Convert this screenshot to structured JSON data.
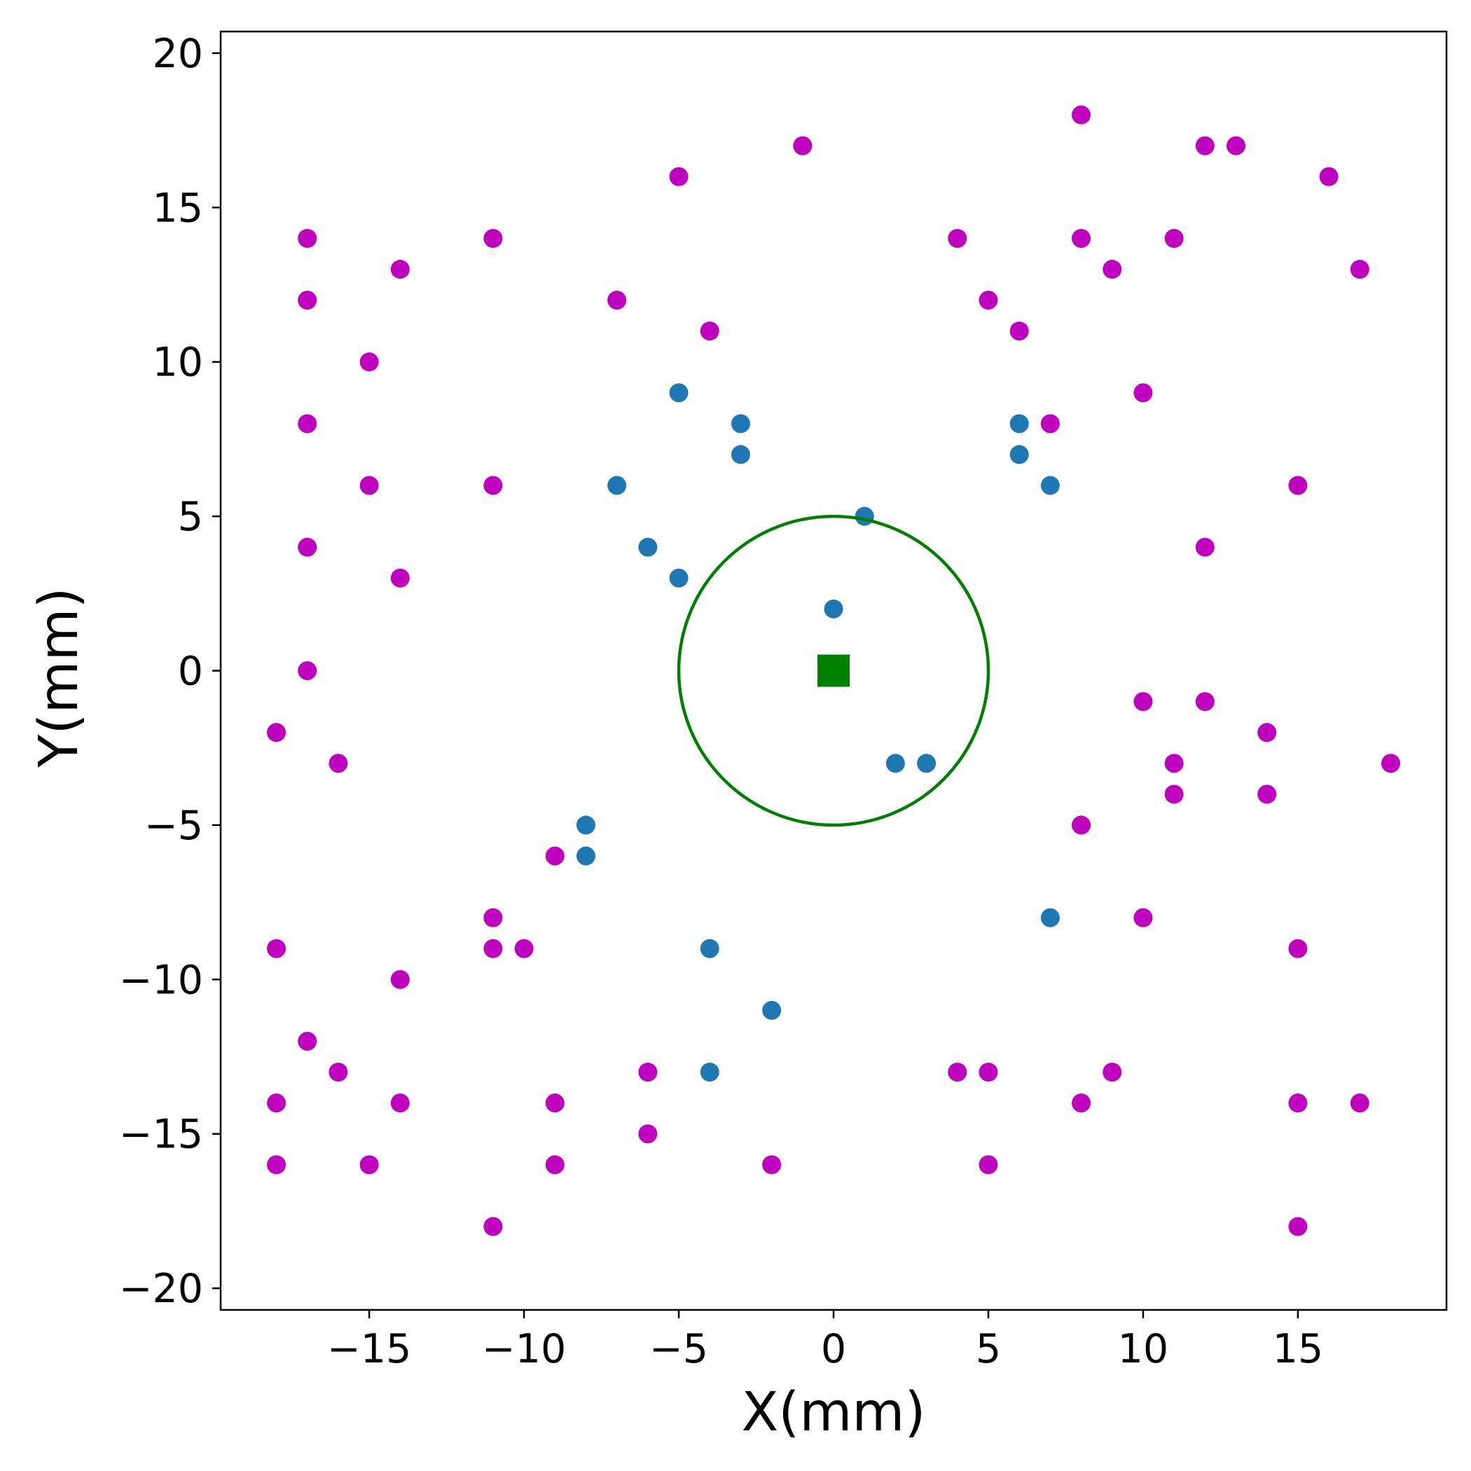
{
  "chart_data": {
    "type": "scatter",
    "xlabel": "X(mm)",
    "ylabel": "Y(mm)",
    "xlim": [
      -19.8,
      19.8
    ],
    "ylim": [
      -20.7,
      20.7
    ],
    "xticks": [
      -15,
      -10,
      -5,
      0,
      5,
      10,
      15
    ],
    "xtick_labels": [
      "−15",
      "−10",
      "−5",
      "0",
      "5",
      "10",
      "15"
    ],
    "yticks": [
      -20,
      -15,
      -10,
      -5,
      0,
      5,
      10,
      15,
      20
    ],
    "ytick_labels": [
      "−20",
      "−15",
      "−10",
      "−5",
      "0",
      "5",
      "10",
      "15",
      "20"
    ],
    "grid": false,
    "legend": false,
    "series": [
      {
        "marker": "circle",
        "color": "#bf00bf",
        "points": [
          [
            8,
            18
          ],
          [
            -1,
            17
          ],
          [
            12,
            17
          ],
          [
            13,
            17
          ],
          [
            -5,
            16
          ],
          [
            16,
            16
          ],
          [
            -17,
            14
          ],
          [
            -11,
            14
          ],
          [
            4,
            14
          ],
          [
            8,
            14
          ],
          [
            11,
            14
          ],
          [
            -14,
            13
          ],
          [
            9,
            13
          ],
          [
            17,
            13
          ],
          [
            -17,
            12
          ],
          [
            -7,
            12
          ],
          [
            5,
            12
          ],
          [
            -4,
            11
          ],
          [
            6,
            11
          ],
          [
            -15,
            10
          ],
          [
            10,
            9
          ],
          [
            -17,
            8
          ],
          [
            7,
            8
          ],
          [
            -15,
            6
          ],
          [
            -11,
            6
          ],
          [
            15,
            6
          ],
          [
            -17,
            4
          ],
          [
            12,
            4
          ],
          [
            -14,
            3
          ],
          [
            -17,
            0
          ],
          [
            10,
            -1
          ],
          [
            12,
            -1
          ],
          [
            -18,
            -2
          ],
          [
            14,
            -2
          ],
          [
            -16,
            -3
          ],
          [
            11,
            -3
          ],
          [
            18,
            -3
          ],
          [
            11,
            -4
          ],
          [
            14,
            -4
          ],
          [
            8,
            -5
          ],
          [
            -9,
            -6
          ],
          [
            -11,
            -8
          ],
          [
            10,
            -8
          ],
          [
            -18,
            -9
          ],
          [
            -11,
            -9
          ],
          [
            -10,
            -9
          ],
          [
            15,
            -9
          ],
          [
            -14,
            -10
          ],
          [
            -17,
            -12
          ],
          [
            -16,
            -13
          ],
          [
            -6,
            -13
          ],
          [
            4,
            -13
          ],
          [
            5,
            -13
          ],
          [
            9,
            -13
          ],
          [
            -18,
            -14
          ],
          [
            -14,
            -14
          ],
          [
            -9,
            -14
          ],
          [
            8,
            -14
          ],
          [
            15,
            -14
          ],
          [
            17,
            -14
          ],
          [
            -6,
            -15
          ],
          [
            -18,
            -16
          ],
          [
            -15,
            -16
          ],
          [
            -9,
            -16
          ],
          [
            -2,
            -16
          ],
          [
            5,
            -16
          ],
          [
            -11,
            -18
          ],
          [
            15,
            -18
          ]
        ]
      },
      {
        "marker": "circle",
        "color": "#1f77b4",
        "points": [
          [
            -5,
            9
          ],
          [
            -3,
            8
          ],
          [
            6,
            8
          ],
          [
            -3,
            7
          ],
          [
            6,
            7
          ],
          [
            -7,
            6
          ],
          [
            7,
            6
          ],
          [
            1,
            5
          ],
          [
            -6,
            4
          ],
          [
            -5,
            3
          ],
          [
            0,
            2
          ],
          [
            2,
            -3
          ],
          [
            3,
            -3
          ],
          [
            -8,
            -5
          ],
          [
            -8,
            -6
          ],
          [
            7,
            -8
          ],
          [
            -4,
            -9
          ],
          [
            -2,
            -11
          ],
          [
            -4,
            -13
          ]
        ]
      }
    ],
    "center": {
      "marker": "square",
      "color": "#008000",
      "x": 0,
      "y": 0
    },
    "circle": {
      "color": "#008000",
      "cx": 0,
      "cy": 0,
      "radius": 5
    }
  }
}
